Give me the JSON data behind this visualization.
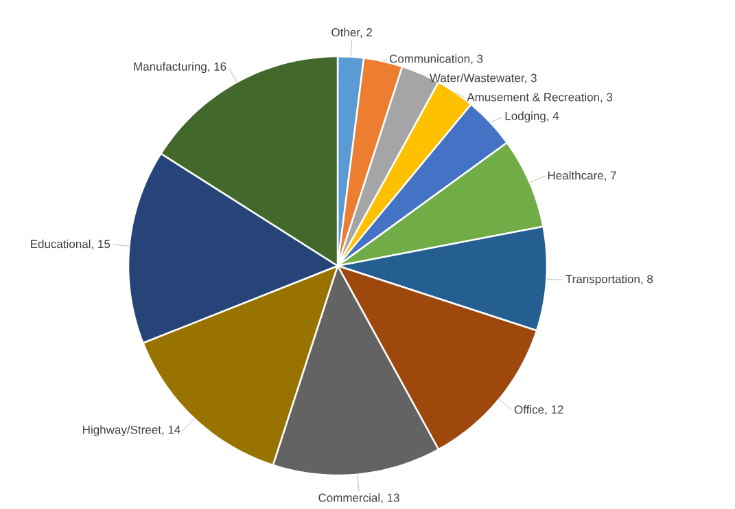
{
  "chart_data": {
    "type": "pie",
    "categories": [
      "Other, 2",
      "Communication, 3",
      "Water/Wastewater, 3",
      "Amusement & Recreation, 3",
      "Lodging, 4",
      "Healthcare, 7",
      "Transportation, 8",
      "Office, 12",
      "Commercial, 13",
      "Highway/Street, 14",
      "Educational, 15",
      "Manufacturing, 16"
    ],
    "values": [
      2,
      3,
      3,
      3,
      4,
      7,
      8,
      12,
      13,
      14,
      15,
      16
    ],
    "colors": [
      "#5b9bd5",
      "#ed7d31",
      "#a5a5a5",
      "#ffc000",
      "#4472c4",
      "#70ad47",
      "#255e91",
      "#9e480e",
      "#636363",
      "#997300",
      "#264478",
      "#43682b"
    ]
  }
}
